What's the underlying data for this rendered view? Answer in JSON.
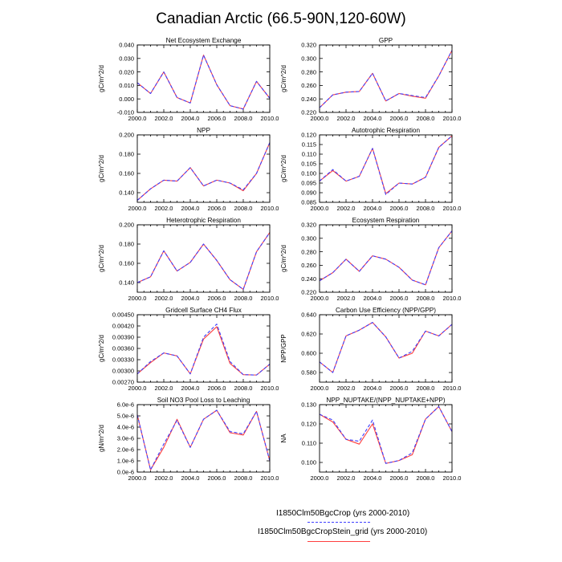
{
  "title": "Canadian Arctic (66.5-90N,120-60W)",
  "legend": {
    "series1": {
      "label": "I1850Clm50BgcCrop (yrs 2000-2010)",
      "color": "#3f3fff",
      "style": "dashed"
    },
    "series2": {
      "label": "I1850Clm50BgcCropStein_grid (yrs 2000-2010)",
      "color": "#ff3f3f",
      "style": "solid"
    }
  },
  "chart_data": [
    {
      "type": "line",
      "title": "Net Ecosystem Exchange",
      "xlabel": "",
      "ylabel": "gC/m^2/d",
      "xlim": [
        2000,
        2010
      ],
      "ylim": [
        -0.01,
        0.04
      ],
      "xticks": [
        "2000.0",
        "2002.0",
        "2004.0",
        "2006.0",
        "2008.0",
        "2010.0"
      ],
      "yticks": [
        "-0.010",
        "0.000",
        "0.010",
        "0.020",
        "0.030",
        "0.040"
      ],
      "x": [
        2000,
        2001,
        2002,
        2003,
        2004,
        2005,
        2006,
        2007,
        2008,
        2009,
        2010
      ],
      "series": [
        {
          "name": "I1850Clm50BgcCrop (yrs 2000-2010)",
          "values": [
            0.012,
            0.004,
            0.02,
            0.001,
            -0.003,
            0.0325,
            0.0105,
            -0.005,
            -0.0075,
            0.013,
            0.0005
          ]
        },
        {
          "name": "I1850Clm50BgcCropStein_grid (yrs 2000-2010)",
          "values": [
            0.012,
            0.004,
            0.02,
            0.001,
            -0.003,
            0.0325,
            0.0105,
            -0.005,
            -0.0075,
            0.013,
            0.0005
          ]
        }
      ]
    },
    {
      "type": "line",
      "title": "GPP",
      "xlabel": "",
      "ylabel": "gC/m^2/d",
      "xlim": [
        2000,
        2010
      ],
      "ylim": [
        0.22,
        0.32
      ],
      "xticks": [
        "2000.0",
        "2002.0",
        "2004.0",
        "2006.0",
        "2008.0",
        "2010.0"
      ],
      "yticks": [
        "0.220",
        "0.240",
        "0.260",
        "0.280",
        "0.300",
        "0.320"
      ],
      "x": [
        2000,
        2001,
        2002,
        2003,
        2004,
        2005,
        2006,
        2007,
        2008,
        2009,
        2010
      ],
      "series": [
        {
          "name": "I1850Clm50BgcCrop (yrs 2000-2010)",
          "values": [
            0.227,
            0.246,
            0.25,
            0.251,
            0.278,
            0.237,
            0.248,
            0.245,
            0.242,
            0.274,
            0.312
          ]
        },
        {
          "name": "I1850Clm50BgcCropStein_grid (yrs 2000-2010)",
          "values": [
            0.227,
            0.246,
            0.25,
            0.251,
            0.278,
            0.237,
            0.248,
            0.244,
            0.241,
            0.274,
            0.312
          ]
        }
      ]
    },
    {
      "type": "line",
      "title": "NPP",
      "xlabel": "",
      "ylabel": "gC/m^2/d",
      "xlim": [
        2000,
        2010
      ],
      "ylim": [
        0.13,
        0.2
      ],
      "xticks": [
        "2000.0",
        "2002.0",
        "2004.0",
        "2006.0",
        "2008.0",
        "2010.0"
      ],
      "yticks": [
        "0.140",
        "0.160",
        "0.180",
        "0.200"
      ],
      "x": [
        2000,
        2001,
        2002,
        2003,
        2004,
        2005,
        2006,
        2007,
        2008,
        2009,
        2010
      ],
      "series": [
        {
          "name": "I1850Clm50BgcCrop (yrs 2000-2010)",
          "values": [
            0.132,
            0.144,
            0.153,
            0.152,
            0.166,
            0.147,
            0.153,
            0.15,
            0.143,
            0.16,
            0.192
          ]
        },
        {
          "name": "I1850Clm50BgcCropStein_grid (yrs 2000-2010)",
          "values": [
            0.132,
            0.144,
            0.153,
            0.152,
            0.166,
            0.147,
            0.153,
            0.15,
            0.142,
            0.16,
            0.192
          ]
        }
      ]
    },
    {
      "type": "line",
      "title": "Autotrophic Respiration",
      "xlabel": "",
      "ylabel": "gC/m^2/d",
      "xlim": [
        2000,
        2010
      ],
      "ylim": [
        0.085,
        0.12
      ],
      "xticks": [
        "2000.0",
        "2002.0",
        "2004.0",
        "2006.0",
        "2008.0",
        "2010.0"
      ],
      "yticks": [
        "0.085",
        "0.090",
        "0.095",
        "0.100",
        "0.105",
        "0.110",
        "0.115",
        "0.120"
      ],
      "x": [
        2000,
        2001,
        2002,
        2003,
        2004,
        2005,
        2006,
        2007,
        2008,
        2009,
        2010
      ],
      "series": [
        {
          "name": "I1850Clm50BgcCrop (yrs 2000-2010)",
          "values": [
            0.096,
            0.102,
            0.096,
            0.0985,
            0.113,
            0.089,
            0.095,
            0.0945,
            0.098,
            0.1135,
            0.1195
          ]
        },
        {
          "name": "I1850Clm50BgcCropStein_grid (yrs 2000-2010)",
          "values": [
            0.096,
            0.1015,
            0.096,
            0.0985,
            0.113,
            0.0895,
            0.095,
            0.0945,
            0.098,
            0.1135,
            0.1195
          ]
        }
      ]
    },
    {
      "type": "line",
      "title": "Heterotrophic Respiration",
      "xlabel": "",
      "ylabel": "gC/m^2/d",
      "xlim": [
        2000,
        2010
      ],
      "ylim": [
        0.13,
        0.2
      ],
      "xticks": [
        "2000.0",
        "2002.0",
        "2004.0",
        "2006.0",
        "2008.0",
        "2010.0"
      ],
      "yticks": [
        "0.140",
        "0.160",
        "0.180",
        "0.200"
      ],
      "x": [
        2000,
        2001,
        2002,
        2003,
        2004,
        2005,
        2006,
        2007,
        2008,
        2009,
        2010
      ],
      "series": [
        {
          "name": "I1850Clm50BgcCrop (yrs 2000-2010)",
          "values": [
            0.14,
            0.146,
            0.173,
            0.152,
            0.161,
            0.18,
            0.163,
            0.143,
            0.133,
            0.172,
            0.192
          ]
        },
        {
          "name": "I1850Clm50BgcCropStein_grid (yrs 2000-2010)",
          "values": [
            0.14,
            0.146,
            0.173,
            0.152,
            0.161,
            0.18,
            0.163,
            0.143,
            0.133,
            0.172,
            0.192
          ]
        }
      ]
    },
    {
      "type": "line",
      "title": "Ecosystem Respiration",
      "xlabel": "",
      "ylabel": "gC/m^2/d",
      "xlim": [
        2000,
        2010
      ],
      "ylim": [
        0.22,
        0.32
      ],
      "xticks": [
        "2000.0",
        "2002.0",
        "2004.0",
        "2006.0",
        "2008.0",
        "2010.0"
      ],
      "yticks": [
        "0.220",
        "0.240",
        "0.260",
        "0.280",
        "0.300",
        "0.320"
      ],
      "x": [
        2000,
        2001,
        2002,
        2003,
        2004,
        2005,
        2006,
        2007,
        2008,
        2009,
        2010
      ],
      "series": [
        {
          "name": "I1850Clm50BgcCrop (yrs 2000-2010)",
          "values": [
            0.237,
            0.249,
            0.269,
            0.251,
            0.274,
            0.269,
            0.257,
            0.238,
            0.231,
            0.286,
            0.311
          ]
        },
        {
          "name": "I1850Clm50BgcCropStein_grid (yrs 2000-2010)",
          "values": [
            0.237,
            0.249,
            0.269,
            0.251,
            0.274,
            0.269,
            0.257,
            0.238,
            0.231,
            0.286,
            0.311
          ]
        }
      ]
    },
    {
      "type": "line",
      "title": "Gridcell Surface CH4 Flux",
      "xlabel": "",
      "ylabel": "gC/m^2/d",
      "xlim": [
        2000,
        2010
      ],
      "ylim": [
        0.0027,
        0.0045
      ],
      "xticks": [
        "2000.0",
        "2002.0",
        "2004.0",
        "2006.0",
        "2008.0",
        "2010.0"
      ],
      "yticks": [
        "0.00270",
        "0.00300",
        "0.00330",
        "0.00360",
        "0.00390",
        "0.00420",
        "0.00450"
      ],
      "x": [
        2000,
        2001,
        2002,
        2003,
        2004,
        2005,
        2006,
        2007,
        2008,
        2009,
        2010
      ],
      "series": [
        {
          "name": "I1850Clm50BgcCrop (yrs 2000-2010)",
          "values": [
            0.00292,
            0.00325,
            0.00348,
            0.0034,
            0.00292,
            0.0039,
            0.00425,
            0.00325,
            0.0029,
            0.00289,
            0.00318
          ]
        },
        {
          "name": "I1850Clm50BgcCropStein_grid (yrs 2000-2010)",
          "values": [
            0.00292,
            0.00322,
            0.00348,
            0.0034,
            0.00292,
            0.00385,
            0.00418,
            0.0032,
            0.0029,
            0.00289,
            0.00318
          ]
        }
      ]
    },
    {
      "type": "line",
      "title": "Carbon Use Efficiency (NPP/GPP)",
      "xlabel": "",
      "ylabel": "NPP/GPP",
      "xlim": [
        2000,
        2010
      ],
      "ylim": [
        0.57,
        0.64
      ],
      "xticks": [
        "2000.0",
        "2002.0",
        "2004.0",
        "2006.0",
        "2008.0",
        "2010.0"
      ],
      "yticks": [
        "0.580",
        "0.600",
        "0.620",
        "0.640"
      ],
      "x": [
        2000,
        2001,
        2002,
        2003,
        2004,
        2005,
        2006,
        2007,
        2008,
        2009,
        2010
      ],
      "series": [
        {
          "name": "I1850Clm50BgcCrop (yrs 2000-2010)",
          "values": [
            0.591,
            0.58,
            0.618,
            0.624,
            0.632,
            0.617,
            0.595,
            0.602,
            0.623,
            0.618,
            0.63
          ]
        },
        {
          "name": "I1850Clm50BgcCropStein_grid (yrs 2000-2010)",
          "values": [
            0.591,
            0.58,
            0.618,
            0.624,
            0.632,
            0.617,
            0.595,
            0.6,
            0.623,
            0.618,
            0.63
          ]
        }
      ]
    },
    {
      "type": "line",
      "title": "Soil NO3 Pool Loss to Leaching",
      "xlabel": "",
      "ylabel": "gN/m^2/d",
      "xlim": [
        2000,
        2010
      ],
      "ylim": [
        0.0,
        6e-06
      ],
      "xticks": [
        "2000.0",
        "2002.0",
        "2004.0",
        "2006.0",
        "2008.0",
        "2010.0"
      ],
      "yticks": [
        "0.0e-6",
        "1.0e-6",
        "2.0e-6",
        "3.0e-6",
        "4.0e-6",
        "5.0e-6",
        "6.0e-6"
      ],
      "x": [
        2000,
        2001,
        2002,
        2003,
        2004,
        2005,
        2006,
        2007,
        2008,
        2009,
        2010
      ],
      "series": [
        {
          "name": "I1850Clm50BgcCrop (yrs 2000-2010)",
          "values": [
            5.1e-06,
            2e-07,
            2.5e-06,
            4.6e-06,
            2.2e-06,
            4.7e-06,
            5.5e-06,
            3.6e-06,
            3.4e-06,
            5.4e-06,
            1e-06
          ]
        },
        {
          "name": "I1850Clm50BgcCropStein_grid (yrs 2000-2010)",
          "values": [
            5.1e-06,
            2e-07,
            2.2e-06,
            4.7e-06,
            2.2e-06,
            4.7e-06,
            5.5e-06,
            3.5e-06,
            3.3e-06,
            5.4e-06,
            1e-06
          ]
        }
      ]
    },
    {
      "type": "line",
      "title": "NPP_NUPTAKE/(NPP_NUPTAKE+NPP)",
      "xlabel": "",
      "ylabel": "NA",
      "xlim": [
        2000,
        2010
      ],
      "ylim": [
        0.095,
        0.13
      ],
      "xticks": [
        "2000.0",
        "2002.0",
        "2004.0",
        "2006.0",
        "2008.0",
        "2010.0"
      ],
      "yticks": [
        "0.100",
        "0.110",
        "0.120",
        "0.130"
      ],
      "x": [
        2000,
        2001,
        2002,
        2003,
        2004,
        2005,
        2006,
        2007,
        2008,
        2009,
        2010
      ],
      "series": [
        {
          "name": "I1850Clm50BgcCrop (yrs 2000-2010)",
          "values": [
            0.125,
            0.122,
            0.112,
            0.111,
            0.122,
            0.0995,
            0.101,
            0.105,
            0.1225,
            0.129,
            0.116
          ]
        },
        {
          "name": "I1850Clm50BgcCropStein_grid (yrs 2000-2010)",
          "values": [
            0.125,
            0.121,
            0.112,
            0.1095,
            0.12,
            0.0995,
            0.101,
            0.104,
            0.1225,
            0.129,
            0.116
          ]
        }
      ]
    }
  ]
}
